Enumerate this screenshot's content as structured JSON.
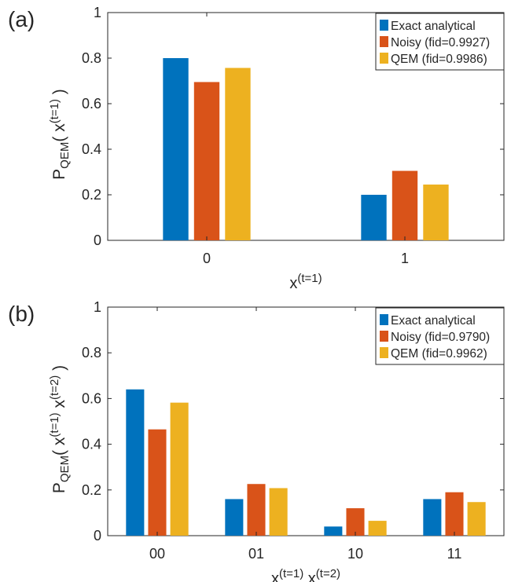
{
  "chart_data": [
    {
      "type": "bar",
      "panel_label": "(a)",
      "categories": [
        "0",
        "1"
      ],
      "series": [
        {
          "name": "Exact analytical",
          "values": [
            0.8,
            0.2
          ]
        },
        {
          "name": "Noisy (fid=0.9927)",
          "values": [
            0.695,
            0.305
          ]
        },
        {
          "name": "QEM (fid=0.9986)",
          "values": [
            0.757,
            0.245
          ]
        }
      ],
      "ylim": [
        0,
        1
      ],
      "yticks": [
        "0",
        "0.2",
        "0.4",
        "0.6",
        "0.8",
        "1"
      ],
      "ylabel": {
        "base": "P",
        "sub": "QEM",
        "open": "(",
        "terms": [
          {
            "base": "x",
            "sup": "(t=1)"
          }
        ],
        "close": ")"
      },
      "xlabel": {
        "terms": [
          {
            "base": "x",
            "sup": "(t=1)"
          }
        ]
      },
      "legend_position": "top-right",
      "grid": false
    },
    {
      "type": "bar",
      "panel_label": "(b)",
      "categories": [
        "00",
        "01",
        "10",
        "11"
      ],
      "series": [
        {
          "name": "Exact analytical",
          "values": [
            0.64,
            0.16,
            0.04,
            0.16
          ]
        },
        {
          "name": "Noisy (fid=0.9790)",
          "values": [
            0.465,
            0.226,
            0.12,
            0.19
          ]
        },
        {
          "name": "QEM (fid=0.9962)",
          "values": [
            0.582,
            0.208,
            0.065,
            0.147
          ]
        }
      ],
      "ylim": [
        0,
        1
      ],
      "yticks": [
        "0",
        "0.2",
        "0.4",
        "0.6",
        "0.8",
        "1"
      ],
      "ylabel": {
        "base": "P",
        "sub": "QEM",
        "open": "(",
        "terms": [
          {
            "base": "x",
            "sup": "(t=1)"
          },
          {
            "base": "x",
            "sup": "(t=2)"
          }
        ],
        "close": ")"
      },
      "xlabel": {
        "terms": [
          {
            "base": "x",
            "sup": "(t=1)"
          },
          {
            "base": "x",
            "sup": "(t=2)"
          }
        ]
      },
      "legend_position": "top-right",
      "grid": false
    }
  ],
  "colors": {
    "series": [
      "#0072bd",
      "#d95319",
      "#edb120"
    ],
    "axis": "#262626",
    "background": "#ffffff"
  }
}
